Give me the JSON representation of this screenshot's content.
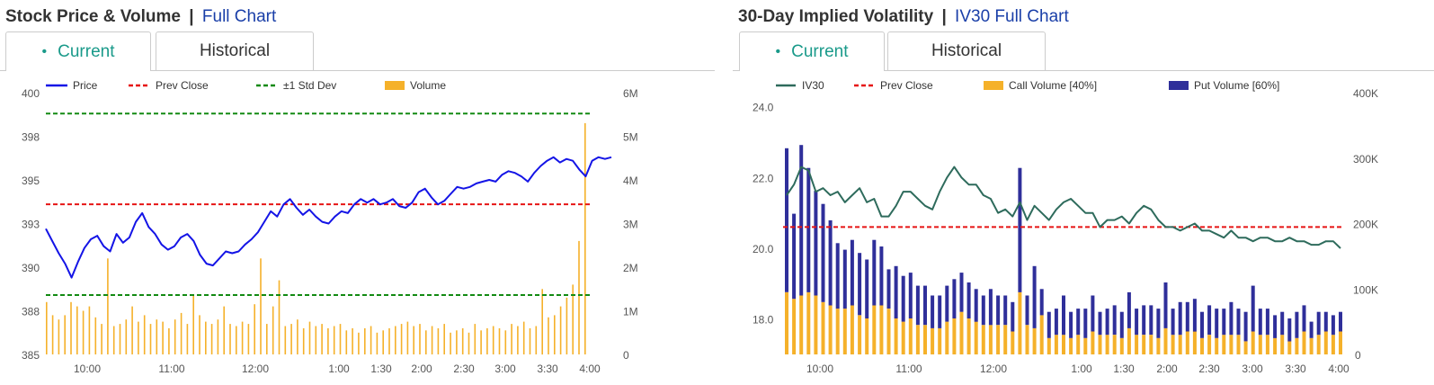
{
  "left": {
    "title": "Stock Price & Volume",
    "separator": "|",
    "link": "Full Chart",
    "tabs": [
      {
        "label": "Current",
        "bullet": "•"
      },
      {
        "label": "Historical"
      }
    ]
  },
  "right": {
    "title": "30-Day Implied Volatility",
    "separator": "|",
    "link": "IV30 Full Chart",
    "tabs": [
      {
        "label": "Current",
        "bullet": "•"
      },
      {
        "label": "Historical"
      }
    ]
  },
  "colors": {
    "price": "#1414e6",
    "prev_close": "#e61414",
    "std_dev": "#138a13",
    "volume": "#f5b12a",
    "iv30": "#2e6b5c",
    "call_volume": "#f5b12a",
    "put_volume": "#2f2f9a"
  },
  "chart_data": [
    {
      "type": "line",
      "title": "Stock Price & Volume",
      "legend": [
        "Price",
        "Prev Close",
        "±1 Std Dev",
        "Volume"
      ],
      "x_ticks": [
        "10:00",
        "11:00",
        "12:00",
        "1:00",
        "1:30",
        "2:00",
        "2:30",
        "3:00",
        "3:30",
        "4:00"
      ],
      "y_ticks": [
        "400",
        "398",
        "395",
        "393",
        "390",
        "388",
        "385"
      ],
      "y2_ticks": [
        "6M",
        "5M",
        "4M",
        "3M",
        "2M",
        "1M",
        "0"
      ],
      "ylim": [
        385,
        400
      ],
      "y2lim": [
        0,
        6000000
      ],
      "prev_close": 393.6,
      "std_dev_upper": 398.8,
      "std_dev_lower": 388.4,
      "price_series": [
        392.2,
        391.5,
        390.8,
        390.2,
        389.4,
        390.3,
        391.1,
        391.6,
        391.8,
        391.2,
        390.9,
        391.9,
        391.4,
        391.7,
        392.6,
        393.1,
        392.3,
        391.9,
        391.3,
        391.0,
        391.2,
        391.7,
        391.9,
        391.5,
        390.7,
        390.2,
        390.1,
        390.5,
        390.9,
        390.8,
        390.9,
        391.3,
        391.6,
        392.0,
        392.6,
        393.2,
        392.9,
        393.6,
        393.9,
        393.4,
        393.0,
        393.3,
        392.9,
        392.6,
        392.5,
        392.9,
        393.2,
        393.1,
        393.6,
        393.9,
        393.7,
        393.9,
        393.6,
        393.7,
        393.9,
        393.5,
        393.4,
        393.7,
        394.3,
        394.5,
        394.0,
        393.6,
        393.8,
        394.2,
        394.6,
        394.5,
        394.6,
        394.8,
        394.9,
        395.0,
        394.9,
        395.3,
        395.5,
        395.4,
        395.2,
        394.9,
        395.4,
        395.8,
        396.1,
        396.3,
        396.0,
        396.2,
        396.1,
        395.6,
        395.2,
        396.1,
        396.3,
        396.2,
        396.3
      ],
      "volume_series": [
        1200000,
        900000,
        800000,
        900000,
        1200000,
        1100000,
        1000000,
        1100000,
        850000,
        700000,
        2200000,
        650000,
        700000,
        800000,
        1100000,
        750000,
        900000,
        700000,
        800000,
        750000,
        600000,
        800000,
        950000,
        700000,
        1350000,
        900000,
        750000,
        700000,
        800000,
        1100000,
        700000,
        650000,
        750000,
        700000,
        1150000,
        2200000,
        700000,
        1100000,
        1700000,
        650000,
        700000,
        800000,
        600000,
        750000,
        650000,
        700000,
        600000,
        650000,
        700000,
        550000,
        600000,
        500000,
        600000,
        650000,
        500000,
        550000,
        600000,
        650000,
        700000,
        750000,
        650000,
        700000,
        550000,
        650000,
        600000,
        700000,
        500000,
        550000,
        600000,
        500000,
        700000,
        550000,
        600000,
        650000,
        600000,
        550000,
        700000,
        650000,
        750000,
        600000,
        650000,
        1500000,
        850000,
        900000,
        1100000,
        1300000,
        1600000,
        2600000,
        5300000
      ]
    },
    {
      "type": "bar",
      "title": "30-Day Implied Volatility",
      "legend": [
        "IV30",
        "Prev Close",
        "Call Volume [40%]",
        "Put Volume [60%]"
      ],
      "x_ticks": [
        "10:00",
        "11:00",
        "12:00",
        "1:00",
        "1:30",
        "2:00",
        "2:30",
        "3:00",
        "3:30",
        "4:00"
      ],
      "y_ticks": [
        "24.0",
        "22.0",
        "20.0",
        "18.0"
      ],
      "y2_ticks": [
        "400K",
        "300K",
        "200K",
        "100K",
        "0"
      ],
      "ylim": [
        17.0,
        24.4
      ],
      "y2lim": [
        0,
        400000
      ],
      "prev_close": 20.6,
      "iv30_series": [
        21.5,
        21.8,
        22.3,
        22.2,
        21.6,
        21.7,
        21.5,
        21.6,
        21.3,
        21.5,
        21.7,
        21.3,
        21.4,
        20.9,
        20.9,
        21.2,
        21.6,
        21.6,
        21.4,
        21.2,
        21.1,
        21.6,
        22.0,
        22.3,
        22.0,
        21.8,
        21.8,
        21.5,
        21.4,
        21.0,
        21.1,
        20.9,
        21.3,
        20.8,
        21.2,
        21.0,
        20.8,
        21.1,
        21.3,
        21.4,
        21.2,
        21.0,
        21.0,
        20.6,
        20.8,
        20.8,
        20.9,
        20.7,
        21.0,
        21.2,
        21.1,
        20.8,
        20.6,
        20.6,
        20.5,
        20.6,
        20.7,
        20.5,
        20.5,
        20.4,
        20.3,
        20.5,
        20.3,
        20.3,
        20.2,
        20.3,
        20.3,
        20.2,
        20.2,
        20.3,
        20.2,
        20.2,
        20.1,
        20.1,
        20.2,
        20.2,
        20.0
      ],
      "call_volume": [
        95000,
        85000,
        90000,
        95000,
        90000,
        80000,
        75000,
        70000,
        70000,
        75000,
        60000,
        55000,
        75000,
        75000,
        70000,
        55000,
        50000,
        55000,
        45000,
        45000,
        40000,
        40000,
        50000,
        55000,
        65000,
        55000,
        50000,
        45000,
        45000,
        45000,
        45000,
        35000,
        95000,
        45000,
        40000,
        60000,
        25000,
        30000,
        30000,
        25000,
        30000,
        25000,
        35000,
        30000,
        30000,
        30000,
        25000,
        40000,
        30000,
        30000,
        30000,
        25000,
        40000,
        30000,
        30000,
        35000,
        35000,
        25000,
        30000,
        25000,
        30000,
        30000,
        30000,
        20000,
        35000,
        30000,
        30000,
        25000,
        30000,
        20000,
        25000,
        35000,
        25000,
        30000,
        35000,
        30000,
        35000
      ],
      "put_volume": [
        220000,
        130000,
        230000,
        190000,
        160000,
        150000,
        130000,
        100000,
        90000,
        100000,
        95000,
        90000,
        100000,
        90000,
        60000,
        80000,
        70000,
        70000,
        60000,
        60000,
        50000,
        50000,
        55000,
        60000,
        60000,
        55000,
        50000,
        45000,
        55000,
        45000,
        45000,
        45000,
        190000,
        45000,
        95000,
        40000,
        40000,
        40000,
        60000,
        40000,
        40000,
        45000,
        55000,
        35000,
        40000,
        45000,
        40000,
        55000,
        40000,
        45000,
        45000,
        45000,
        70000,
        40000,
        50000,
        45000,
        50000,
        40000,
        45000,
        45000,
        40000,
        50000,
        40000,
        45000,
        70000,
        40000,
        40000,
        35000,
        35000,
        35000,
        40000,
        40000,
        25000,
        35000,
        30000,
        30000,
        30000
      ]
    }
  ]
}
